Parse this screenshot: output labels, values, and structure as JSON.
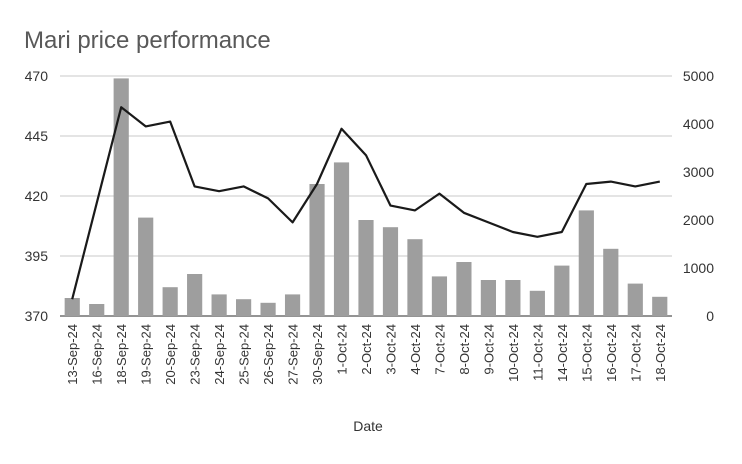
{
  "chart_data": {
    "type": "bar",
    "title": "Mari price performance",
    "xlabel": "Date",
    "ylabel": "",
    "y2label": "",
    "categories": [
      "13-Sep-24",
      "16-Sep-24",
      "18-Sep-24",
      "19-Sep-24",
      "20-Sep-24",
      "23-Sep-24",
      "24-Sep-24",
      "25-Sep-24",
      "26-Sep-24",
      "27-Sep-24",
      "30-Sep-24",
      "1-Oct-24",
      "2-Oct-24",
      "3-Oct-24",
      "4-Oct-24",
      "7-Oct-24",
      "8-Oct-24",
      "9-Oct-24",
      "10-Oct-24",
      "11-Oct-24",
      "14-Oct-24",
      "15-Oct-24",
      "16-Oct-24",
      "17-Oct-24",
      "18-Oct-24"
    ],
    "ylim": [
      370,
      470
    ],
    "y2lim": [
      0,
      5000
    ],
    "yticks": [
      370,
      395,
      420,
      445,
      470
    ],
    "y2ticks": [
      0,
      1000,
      2000,
      3000,
      4000,
      5000
    ],
    "grid": true,
    "series": [
      {
        "type": "bar",
        "axis": "left",
        "color": "#9e9e9e",
        "values": [
          377.5,
          375,
          469,
          411,
          382,
          387.5,
          379,
          377,
          375.5,
          379,
          425,
          434,
          410,
          407,
          402,
          386.5,
          392.5,
          385,
          385,
          380.5,
          391,
          414,
          398,
          383.5,
          378
        ]
      },
      {
        "type": "line",
        "axis": "right",
        "color": "#1a1a1a",
        "values": [
          350,
          2350,
          4350,
          3950,
          4050,
          2700,
          2600,
          2700,
          2450,
          1950,
          2750,
          3900,
          3350,
          2300,
          2200,
          2550,
          2150,
          1950,
          1750,
          1650,
          1750,
          2750,
          2800,
          2700,
          2800
        ]
      }
    ]
  }
}
